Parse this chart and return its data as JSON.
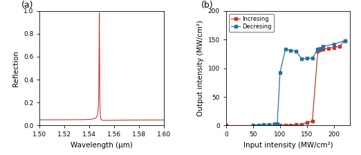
{
  "panel_a": {
    "label": "(a)",
    "xlabel": "Wavelength (μm)",
    "ylabel": "Reflection",
    "xlim": [
      1.5,
      1.6
    ],
    "ylim": [
      0.0,
      1.0
    ],
    "xticks": [
      1.5,
      1.52,
      1.54,
      1.56,
      1.58,
      1.6
    ],
    "yticks": [
      0.0,
      0.2,
      0.4,
      0.6,
      0.8,
      1.0
    ],
    "line_color": "#c0392b",
    "resonance_wavelength": 1.548,
    "gamma": 0.00025,
    "q_fano": -15,
    "baseline": 0.045,
    "peak_value": 0.985
  },
  "panel_b": {
    "label": "(b)",
    "xlabel": "Input intensity (MW/cm²)",
    "ylabel": "Output intensity (MW/cm²)",
    "xlim": [
      0,
      230
    ],
    "ylim": [
      0,
      200
    ],
    "xticks": [
      0,
      50,
      100,
      150,
      200
    ],
    "yticks": [
      0,
      50,
      100,
      150,
      200
    ],
    "increasing_color": "#c0392b",
    "decreasing_color": "#2471a3",
    "increasing_x": [
      0,
      50,
      60,
      70,
      80,
      90,
      100,
      110,
      120,
      130,
      140,
      150,
      160,
      170,
      175,
      180,
      190,
      200,
      210,
      220
    ],
    "increasing_y": [
      0,
      0,
      0,
      0,
      0,
      0,
      0.5,
      1,
      1,
      1.5,
      2,
      5,
      8,
      130,
      132,
      133,
      135,
      136,
      138,
      148
    ],
    "decreasing_x": [
      220,
      200,
      180,
      175,
      170,
      160,
      150,
      140,
      130,
      120,
      110,
      100,
      95,
      90,
      80,
      70,
      60,
      50
    ],
    "decreasing_y": [
      148,
      142,
      138,
      135,
      133,
      118,
      117,
      116,
      130,
      131,
      133,
      92,
      3,
      2.5,
      2,
      1.5,
      1,
      1
    ],
    "legend_increasing": "Incresing",
    "legend_decreasing": "Decresing"
  },
  "figure_bg": "#ffffff"
}
